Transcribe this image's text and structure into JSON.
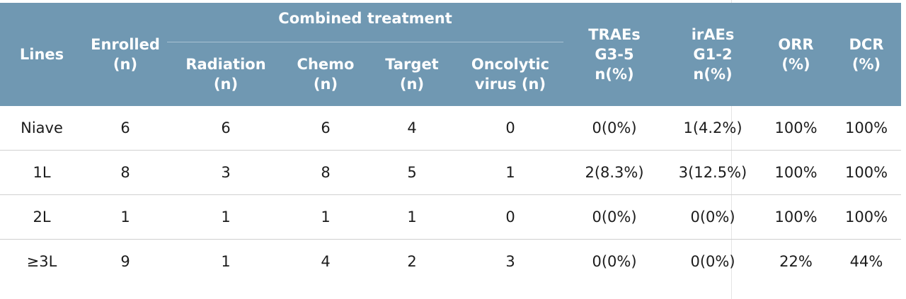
{
  "table": {
    "headers": {
      "lines": "Lines",
      "enrolled": [
        "Enrolled",
        "(n)"
      ],
      "combined_treatment": "Combined treatment",
      "radiation": [
        "Radiation",
        "(n)"
      ],
      "chemo": [
        "Chemo",
        "(n)"
      ],
      "target": [
        "Target",
        "(n)"
      ],
      "oncolytic": [
        "Oncolytic",
        "virus (n)"
      ],
      "traes": [
        "TRAEs",
        "G3-5",
        "n(%)"
      ],
      "iraes": [
        "irAEs",
        "G1-2",
        "n(%)"
      ],
      "orr": [
        "ORR",
        "(%)"
      ],
      "dcr": [
        "DCR",
        "(%)"
      ]
    },
    "rows": [
      {
        "line": "Niave",
        "enrolled": "6",
        "radiation": "6",
        "chemo": "6",
        "target": "4",
        "oncolytic": "0",
        "traes": "0(0%)",
        "iraes": "1(4.2%)",
        "orr": "100%",
        "dcr": "100%"
      },
      {
        "line": "1L",
        "enrolled": "8",
        "radiation": "3",
        "chemo": "8",
        "target": "5",
        "oncolytic": "1",
        "traes": "2(8.3%)",
        "iraes": "3(12.5%)",
        "orr": "100%",
        "dcr": "100%"
      },
      {
        "line": "2L",
        "enrolled": "1",
        "radiation": "1",
        "chemo": "1",
        "target": "1",
        "oncolytic": "0",
        "traes": "0(0%)",
        "iraes": "0(0%)",
        "orr": "100%",
        "dcr": "100%"
      },
      {
        "line": "≥3L",
        "enrolled": "9",
        "radiation": "1",
        "chemo": "4",
        "target": "2",
        "oncolytic": "3",
        "traes": "0(0%)",
        "iraes": "0(0%)",
        "orr": "22%",
        "dcr": "44%"
      }
    ]
  },
  "colors": {
    "header_background": "#7098b2",
    "header_text": "#ffffff",
    "row_divider": "#d0d0d0"
  }
}
